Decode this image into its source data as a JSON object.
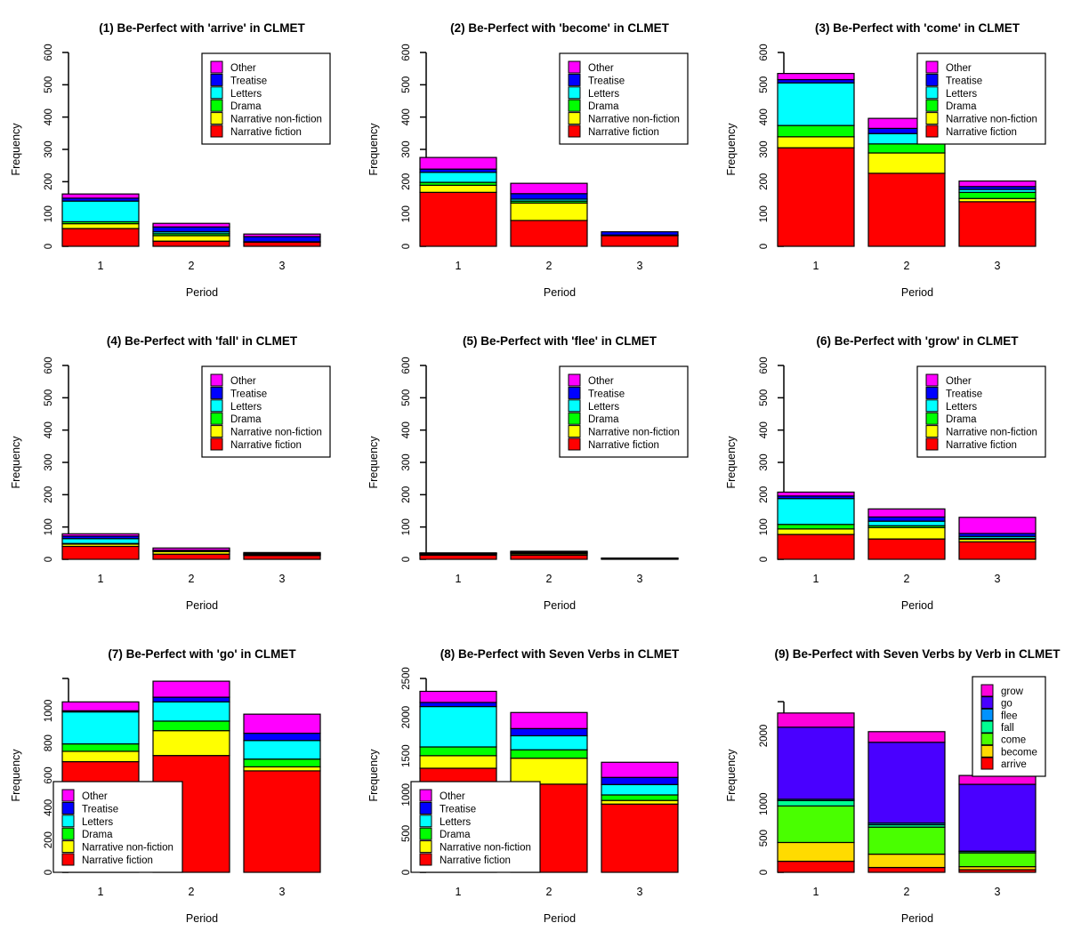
{
  "page": {
    "background": "#FFFFFF"
  },
  "chart_data": [
    {
      "type": "bar",
      "stacked": true,
      "title": "(1) Be-Perfect with 'arrive' in CLMET",
      "xlabel": "Period",
      "ylabel": "Frequency",
      "categories": [
        "1",
        "2",
        "3"
      ],
      "ylim": [
        0,
        600
      ],
      "y_ticks": [
        0,
        100,
        200,
        300,
        400,
        500,
        600
      ],
      "y_tick_labels": [
        "0",
        "100",
        "200",
        "300",
        "400",
        "500",
        "600"
      ],
      "grid": false,
      "legend_position": "top-right",
      "series": [
        {
          "name": "Narrative fiction",
          "color": "#FF0000",
          "values": [
            55,
            16,
            13
          ]
        },
        {
          "name": "Narrative non-fiction",
          "color": "#FFFF00",
          "values": [
            15,
            17,
            0
          ]
        },
        {
          "name": "Drama",
          "color": "#00FF00",
          "values": [
            6,
            6,
            0
          ]
        },
        {
          "name": "Letters",
          "color": "#00FFFF",
          "values": [
            64,
            6,
            1
          ]
        },
        {
          "name": "Treatise",
          "color": "#0000FF",
          "values": [
            9,
            15,
            16
          ]
        },
        {
          "name": "Other",
          "color": "#FF00FF",
          "values": [
            13,
            11,
            8
          ]
        }
      ]
    },
    {
      "type": "bar",
      "stacked": true,
      "title": "(2) Be-Perfect with 'become' in CLMET",
      "xlabel": "Period",
      "ylabel": "Frequency",
      "categories": [
        "1",
        "2",
        "3"
      ],
      "ylim": [
        0,
        600
      ],
      "y_ticks": [
        0,
        100,
        200,
        300,
        400,
        500,
        600
      ],
      "y_tick_labels": [
        "0",
        "100",
        "200",
        "300",
        "400",
        "500",
        "600"
      ],
      "grid": false,
      "legend_position": "top-right",
      "series": [
        {
          "name": "Narrative fiction",
          "color": "#FF0000",
          "values": [
            167,
            80,
            33
          ]
        },
        {
          "name": "Narrative non-fiction",
          "color": "#FFFF00",
          "values": [
            22,
            54,
            1
          ]
        },
        {
          "name": "Drama",
          "color": "#00FF00",
          "values": [
            9,
            6,
            0
          ]
        },
        {
          "name": "Letters",
          "color": "#00FFFF",
          "values": [
            31,
            6,
            1
          ]
        },
        {
          "name": "Treatise",
          "color": "#0000FF",
          "values": [
            10,
            17,
            10
          ]
        },
        {
          "name": "Other",
          "color": "#FF00FF",
          "values": [
            36,
            32,
            0
          ]
        }
      ]
    },
    {
      "type": "bar",
      "stacked": true,
      "title": "(3) Be-Perfect with 'come' in CLMET",
      "xlabel": "Period",
      "ylabel": "Frequency",
      "categories": [
        "1",
        "2",
        "3"
      ],
      "ylim": [
        0,
        600
      ],
      "y_ticks": [
        0,
        100,
        200,
        300,
        400,
        500,
        600
      ],
      "y_tick_labels": [
        "0",
        "100",
        "200",
        "300",
        "400",
        "500",
        "600"
      ],
      "grid": false,
      "legend_position": "top-right",
      "series": [
        {
          "name": "Narrative fiction",
          "color": "#FF0000",
          "values": [
            305,
            226,
            138
          ]
        },
        {
          "name": "Narrative non-fiction",
          "color": "#FFFF00",
          "values": [
            34,
            63,
            10
          ]
        },
        {
          "name": "Drama",
          "color": "#00FF00",
          "values": [
            35,
            28,
            19
          ]
        },
        {
          "name": "Letters",
          "color": "#00FFFF",
          "values": [
            132,
            32,
            9
          ]
        },
        {
          "name": "Treatise",
          "color": "#0000FF",
          "values": [
            10,
            16,
            9
          ]
        },
        {
          "name": "Other",
          "color": "#FF00FF",
          "values": [
            19,
            31,
            17
          ]
        }
      ]
    },
    {
      "type": "bar",
      "stacked": true,
      "title": "(4) Be-Perfect with 'fall' in CLMET",
      "xlabel": "Period",
      "ylabel": "Frequency",
      "categories": [
        "1",
        "2",
        "3"
      ],
      "ylim": [
        0,
        600
      ],
      "y_ticks": [
        0,
        100,
        200,
        300,
        400,
        500,
        600
      ],
      "y_tick_labels": [
        "0",
        "100",
        "200",
        "300",
        "400",
        "500",
        "600"
      ],
      "grid": false,
      "legend_position": "top-right",
      "series": [
        {
          "name": "Narrative fiction",
          "color": "#FF0000",
          "values": [
            40,
            16,
            12
          ]
        },
        {
          "name": "Narrative non-fiction",
          "color": "#FFFF00",
          "values": [
            7,
            8,
            2
          ]
        },
        {
          "name": "Drama",
          "color": "#00FF00",
          "values": [
            2,
            1,
            1
          ]
        },
        {
          "name": "Letters",
          "color": "#00FFFF",
          "values": [
            15,
            2,
            2
          ]
        },
        {
          "name": "Treatise",
          "color": "#0000FF",
          "values": [
            8,
            1,
            2
          ]
        },
        {
          "name": "Other",
          "color": "#FF00FF",
          "values": [
            7,
            7,
            2
          ]
        }
      ]
    },
    {
      "type": "bar",
      "stacked": true,
      "title": "(5) Be-Perfect with 'flee' in CLMET",
      "xlabel": "Period",
      "ylabel": "Frequency",
      "categories": [
        "1",
        "2",
        "3"
      ],
      "ylim": [
        0,
        600
      ],
      "y_ticks": [
        0,
        100,
        200,
        300,
        400,
        500,
        600
      ],
      "y_tick_labels": [
        "0",
        "100",
        "200",
        "300",
        "400",
        "500",
        "600"
      ],
      "grid": false,
      "legend_position": "top-right",
      "series": [
        {
          "name": "Narrative fiction",
          "color": "#FF0000",
          "values": [
            13,
            13,
            2
          ]
        },
        {
          "name": "Narrative non-fiction",
          "color": "#FFFF00",
          "values": [
            3,
            4,
            1
          ]
        },
        {
          "name": "Drama",
          "color": "#00FF00",
          "values": [
            1,
            2,
            0
          ]
        },
        {
          "name": "Letters",
          "color": "#00FFFF",
          "values": [
            1,
            2,
            0
          ]
        },
        {
          "name": "Treatise",
          "color": "#0000FF",
          "values": [
            1,
            2,
            1
          ]
        },
        {
          "name": "Other",
          "color": "#FF00FF",
          "values": [
            1,
            2,
            0
          ]
        }
      ]
    },
    {
      "type": "bar",
      "stacked": true,
      "title": "(6) Be-Perfect with 'grow' in CLMET",
      "xlabel": "Period",
      "ylabel": "Frequency",
      "categories": [
        "1",
        "2",
        "3"
      ],
      "ylim": [
        0,
        600
      ],
      "y_ticks": [
        0,
        100,
        200,
        300,
        400,
        500,
        600
      ],
      "y_tick_labels": [
        "0",
        "100",
        "200",
        "300",
        "400",
        "500",
        "600"
      ],
      "grid": false,
      "legend_position": "top-right",
      "series": [
        {
          "name": "Narrative fiction",
          "color": "#FF0000",
          "values": [
            77,
            63,
            54
          ]
        },
        {
          "name": "Narrative non-fiction",
          "color": "#FFFF00",
          "values": [
            17,
            35,
            8
          ]
        },
        {
          "name": "Drama",
          "color": "#00FF00",
          "values": [
            14,
            6,
            3
          ]
        },
        {
          "name": "Letters",
          "color": "#00FFFF",
          "values": [
            80,
            14,
            6
          ]
        },
        {
          "name": "Treatise",
          "color": "#0000FF",
          "values": [
            8,
            13,
            9
          ]
        },
        {
          "name": "Other",
          "color": "#FF00FF",
          "values": [
            12,
            25,
            50
          ]
        }
      ]
    },
    {
      "type": "bar",
      "stacked": true,
      "title": "(7) Be-Perfect with 'go' in CLMET",
      "xlabel": "Period",
      "ylabel": "Frequency",
      "categories": [
        "1",
        "2",
        "3"
      ],
      "ylim": [
        0,
        1200
      ],
      "y_ticks": [
        0,
        200,
        400,
        600,
        800,
        1000,
        1200
      ],
      "y_tick_labels": [
        "0",
        "200",
        "400",
        "600",
        "800",
        "1000",
        ""
      ],
      "grid": false,
      "legend_position": "bottom-left",
      "series": [
        {
          "name": "Narrative fiction",
          "color": "#FF0000",
          "values": [
            685,
            723,
            628
          ]
        },
        {
          "name": "Narrative non-fiction",
          "color": "#FFFF00",
          "values": [
            64,
            154,
            25
          ]
        },
        {
          "name": "Drama",
          "color": "#00FF00",
          "values": [
            46,
            59,
            48
          ]
        },
        {
          "name": "Letters",
          "color": "#00FFFF",
          "values": [
            198,
            119,
            115
          ]
        },
        {
          "name": "Treatise",
          "color": "#0000FF",
          "values": [
            7,
            29,
            45
          ]
        },
        {
          "name": "Other",
          "color": "#FF00FF",
          "values": [
            55,
            99,
            118
          ]
        }
      ]
    },
    {
      "type": "bar",
      "stacked": true,
      "title": "(8) Be-Perfect with Seven Verbs in CLMET",
      "xlabel": "Period",
      "ylabel": "Frequency",
      "categories": [
        "1",
        "2",
        "3"
      ],
      "ylim": [
        0,
        2500
      ],
      "y_ticks": [
        0,
        500,
        1000,
        1500,
        2000,
        2500
      ],
      "y_tick_labels": [
        "0",
        "500",
        "1000",
        "1500",
        "2000",
        "2500"
      ],
      "grid": false,
      "legend_position": "bottom-left",
      "series": [
        {
          "name": "Narrative fiction",
          "color": "#FF0000",
          "values": [
            1342,
            1137,
            880
          ]
        },
        {
          "name": "Narrative non-fiction",
          "color": "#FFFF00",
          "values": [
            162,
            335,
            47
          ]
        },
        {
          "name": "Drama",
          "color": "#00FF00",
          "values": [
            113,
            108,
            71
          ]
        },
        {
          "name": "Letters",
          "color": "#00FFFF",
          "values": [
            521,
            181,
            134
          ]
        },
        {
          "name": "Treatise",
          "color": "#0000FF",
          "values": [
            53,
            93,
            92
          ]
        },
        {
          "name": "Other",
          "color": "#FF00FF",
          "values": [
            143,
            207,
            195
          ]
        }
      ]
    },
    {
      "type": "bar",
      "stacked": true,
      "title": "(9) Be-Perfect with Seven Verbs by Verb in CLMET",
      "xlabel": "Period",
      "ylabel": "Frequency",
      "categories": [
        "1",
        "2",
        "3"
      ],
      "ylim": [
        0,
        2840
      ],
      "y_ticks": [
        0,
        500,
        1000,
        1500,
        2000,
        2500
      ],
      "y_tick_labels": [
        "0",
        "500",
        "1000",
        "",
        "2000",
        ""
      ],
      "grid": false,
      "legend_position": "top-right-narrow",
      "series": [
        {
          "name": "arrive",
          "color": "#FF0000",
          "values": [
            162,
            71,
            38
          ]
        },
        {
          "name": "become",
          "color": "#FFDB00",
          "values": [
            275,
            195,
            45
          ]
        },
        {
          "name": "come",
          "color": "#49FF00",
          "values": [
            535,
            396,
            202
          ]
        },
        {
          "name": "fall",
          "color": "#00FF92",
          "values": [
            79,
            35,
            21
          ]
        },
        {
          "name": "flee",
          "color": "#0092FF",
          "values": [
            20,
            25,
            4
          ]
        },
        {
          "name": "go",
          "color": "#4900FF",
          "values": [
            1055,
            1183,
            979
          ]
        },
        {
          "name": "grow",
          "color": "#FF00DB",
          "values": [
            208,
            156,
            130
          ]
        }
      ]
    }
  ]
}
